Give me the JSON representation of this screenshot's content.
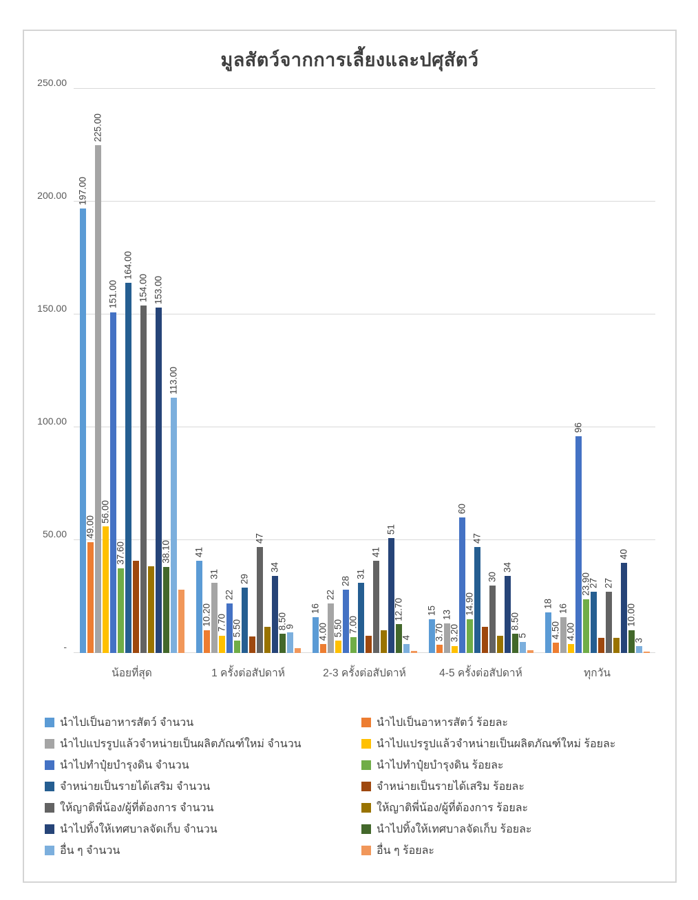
{
  "title": "มูลสัตว์จากการเลี้ยงและปศุสัตว์",
  "chart_data": {
    "type": "bar",
    "title": "มูลสัตว์จากการเลี้ยงและปศุสัตว์",
    "grid": true,
    "legend_position": "bottom",
    "categories": [
      "น้อยที่สุด",
      "1 ครั้งต่อสัปดาห์",
      "2-3 ครั้งต่อสัปดาห์",
      "4-5 ครั้งต่อสัปดาห์",
      "ทุกวัน"
    ],
    "y_axis": {
      "min": 0,
      "max": 250,
      "tick_values": [
        250,
        200,
        150,
        100,
        50,
        0
      ],
      "tick_labels": [
        "250.00",
        "200.00",
        "150.00",
        "100.00",
        "50.00",
        "-"
      ]
    },
    "series": [
      {
        "name": "นำไปเป็นอาหารสัตว์ จำนวน",
        "color": "#5B9BD5",
        "values": [
          197,
          41,
          16,
          15,
          18
        ],
        "labels": [
          "197.00",
          "41",
          "16",
          "15",
          "18"
        ]
      },
      {
        "name": "นำไปเป็นอาหารสัตว์ ร้อยละ",
        "color": "#ED7D31",
        "values": [
          49,
          10.2,
          4,
          3.7,
          4.5
        ],
        "labels": [
          "49.00",
          "10.20",
          "4.00",
          "3.70",
          "4.50"
        ]
      },
      {
        "name": "นำไปแปรรูปแล้วจำหน่ายเป็นผลิตภัณฑ์ใหม่ จำนวน",
        "color": "#A5A5A5",
        "values": [
          225,
          31,
          22,
          13,
          16
        ],
        "labels": [
          "225.00",
          "31",
          "22",
          "13",
          "16"
        ]
      },
      {
        "name": "นำไปแปรรูปแล้วจำหน่ายเป็นผลิตภัณฑ์ใหม่ ร้อยละ",
        "color": "#FFC000",
        "values": [
          56,
          7.7,
          5.5,
          3.2,
          4
        ],
        "labels": [
          "56.00",
          "7.70",
          "5.50",
          "3.20",
          "4.00"
        ]
      },
      {
        "name": "นำไปทำปุ๋ยบำรุงดิน จำนวน",
        "color": "#4472C4",
        "values": [
          151,
          22,
          28,
          60,
          96
        ],
        "labels": [
          "151.00",
          "22",
          "28",
          "60",
          "96"
        ]
      },
      {
        "name": "นำไปทำปุ๋ยบำรุงดิน ร้อยละ",
        "color": "#70AD47",
        "values": [
          37.6,
          5.5,
          7,
          14.9,
          23.9
        ],
        "labels": [
          "37.60",
          "5.50",
          "7.00",
          "14.90",
          "23.90"
        ]
      },
      {
        "name": "จำหน่ายเป็นรายได้เสริม จำนวน",
        "color": "#255E91",
        "values": [
          164,
          29,
          31,
          47,
          27
        ],
        "labels": [
          "164.00",
          "29",
          "31",
          "47",
          "27"
        ]
      },
      {
        "name": "จำหน่ายเป็นรายได้เสริม ร้อยละ",
        "color": "#9E480E",
        "values": [
          40.8,
          7.2,
          7.7,
          11.7,
          6.7
        ],
        "labels": [
          null,
          null,
          null,
          null,
          null
        ]
      },
      {
        "name": "ให้ญาติพี่น้อง/ผู้ที่ต้องการ จำนวน",
        "color": "#636363",
        "values": [
          154,
          47,
          41,
          30,
          27
        ],
        "labels": [
          "154.00",
          "47",
          "41",
          "30",
          "27"
        ]
      },
      {
        "name": "ให้ญาติพี่น้อง/ผู้ที่ต้องการ ร้อยละ",
        "color": "#997300",
        "values": [
          38.3,
          11.7,
          10.2,
          7.5,
          6.7
        ],
        "labels": [
          null,
          null,
          null,
          null,
          null
        ]
      },
      {
        "name": "นำไปทิ้งให้เทศบาลจัดเก็บ จำนวน",
        "color": "#264478",
        "values": [
          153,
          34,
          51,
          34,
          40
        ],
        "labels": [
          "153.00",
          "34",
          "51",
          "34",
          "40"
        ]
      },
      {
        "name": "นำไปทิ้งให้เทศบาลจัดเก็บ ร้อยละ",
        "color": "#43682B",
        "values": [
          38.1,
          8.5,
          12.7,
          8.5,
          10
        ],
        "labels": [
          "38.10",
          "8.50",
          "12.70",
          "8.50",
          "10.00"
        ]
      },
      {
        "name": "อื่น ๆ จำนวน",
        "color": "#7CAFDD",
        "values": [
          113,
          9,
          4,
          5,
          3
        ],
        "labels": [
          "113.00",
          "9",
          "4",
          "5",
          "3"
        ]
      },
      {
        "name": "อื่น ๆ ร้อยละ",
        "color": "#F1975A",
        "values": [
          28.1,
          2.2,
          1,
          1.2,
          0.7
        ],
        "labels": [
          null,
          null,
          null,
          null,
          null
        ]
      }
    ]
  }
}
